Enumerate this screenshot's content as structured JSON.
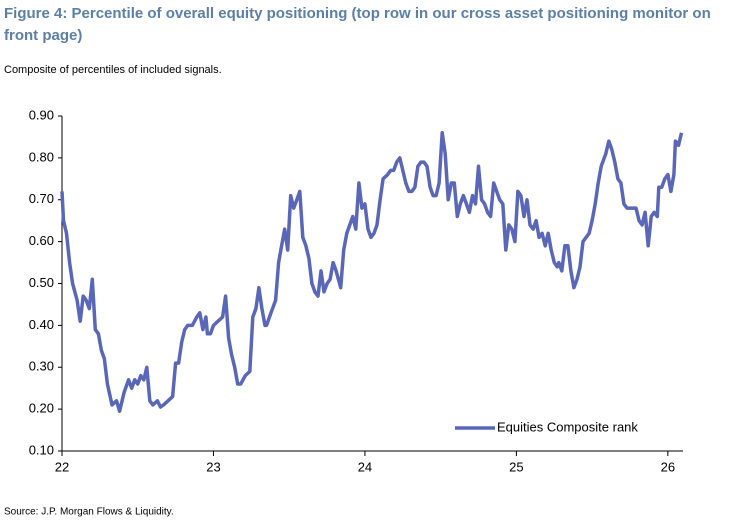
{
  "chart_data": {
    "type": "line",
    "title": [
      "Figure 4: Percentile of overall equity positioning (top row in our cross asset positioning monitor on",
      "front page)"
    ],
    "subtitle": "Composite of percentiles of included signals.",
    "source": "Source: J.P. Morgan Flows & Liquidity.",
    "legend": "lower right",
    "grid": false,
    "xlim": [
      22,
      26.1
    ],
    "xticks": [
      22,
      23,
      24,
      25,
      26
    ],
    "ylim": [
      0.1,
      0.9
    ],
    "yticks": [
      {
        "value": 0.1,
        "label": "0.10"
      },
      {
        "value": 0.2,
        "label": "0.20"
      },
      {
        "value": 0.3,
        "label": "0.30"
      },
      {
        "value": 0.4,
        "label": "0.40"
      },
      {
        "value": 0.5,
        "label": "0.50"
      },
      {
        "value": 0.6,
        "label": "0.60"
      },
      {
        "value": 0.7,
        "label": "0.70"
      },
      {
        "value": 0.8,
        "label": "0.80"
      },
      {
        "value": 0.9,
        "label": "0.90"
      }
    ],
    "x": [
      22.0,
      22.01,
      22.03,
      22.05,
      22.07,
      22.1,
      22.12,
      22.14,
      22.16,
      22.18,
      22.2,
      22.22,
      22.24,
      22.26,
      22.28,
      22.3,
      22.33,
      22.36,
      22.38,
      22.41,
      22.44,
      22.46,
      22.48,
      22.5,
      22.52,
      22.54,
      22.56,
      22.58,
      22.6,
      22.63,
      22.65,
      22.67,
      22.7,
      22.73,
      22.75,
      22.77,
      22.79,
      22.81,
      22.83,
      22.86,
      22.89,
      22.91,
      22.93,
      22.95,
      22.96,
      22.98,
      23.0,
      23.03,
      23.06,
      23.08,
      23.1,
      23.12,
      23.14,
      23.16,
      23.18,
      23.21,
      23.24,
      23.26,
      23.28,
      23.3,
      23.32,
      23.34,
      23.35,
      23.38,
      23.41,
      23.43,
      23.45,
      23.47,
      23.49,
      23.51,
      23.53,
      23.55,
      23.57,
      23.59,
      23.61,
      23.63,
      23.65,
      23.67,
      23.69,
      23.71,
      23.73,
      23.75,
      23.77,
      23.79,
      23.81,
      23.84,
      23.86,
      23.88,
      23.9,
      23.92,
      23.94,
      23.96,
      23.98,
      24.0,
      24.02,
      24.04,
      24.06,
      24.08,
      24.1,
      24.12,
      24.15,
      24.17,
      24.19,
      24.21,
      24.23,
      24.25,
      24.27,
      24.29,
      24.31,
      24.33,
      24.35,
      24.37,
      24.39,
      24.41,
      24.43,
      24.45,
      24.47,
      24.49,
      24.51,
      24.53,
      24.55,
      24.57,
      24.59,
      24.61,
      24.63,
      24.65,
      24.67,
      24.69,
      24.71,
      24.73,
      24.75,
      24.77,
      24.79,
      24.81,
      24.83,
      24.85,
      24.87,
      24.89,
      24.91,
      24.93,
      24.95,
      24.97,
      24.99,
      25.01,
      25.03,
      25.05,
      25.07,
      25.09,
      25.11,
      25.13,
      25.15,
      25.17,
      25.19,
      25.21,
      25.23,
      25.25,
      25.27,
      25.28,
      25.3,
      25.32,
      25.34,
      25.36,
      25.38,
      25.4,
      25.42,
      25.44,
      25.46,
      25.48,
      25.5,
      25.52,
      25.54,
      25.56,
      25.59,
      25.61,
      25.63,
      25.65,
      25.67,
      25.69,
      25.71,
      25.73,
      25.75,
      25.77,
      25.79,
      25.81,
      25.83,
      25.85,
      25.87,
      25.89,
      25.91,
      25.93,
      25.94,
      25.96,
      25.98,
      26.0,
      26.02,
      26.04,
      26.05,
      26.07,
      26.09
    ],
    "series": [
      {
        "name": "Equities Composite rank",
        "color": "#5a67b8",
        "values": [
          0.72,
          0.65,
          0.62,
          0.55,
          0.5,
          0.46,
          0.41,
          0.47,
          0.46,
          0.44,
          0.51,
          0.39,
          0.38,
          0.34,
          0.32,
          0.26,
          0.21,
          0.22,
          0.195,
          0.24,
          0.27,
          0.25,
          0.27,
          0.26,
          0.28,
          0.27,
          0.3,
          0.22,
          0.21,
          0.22,
          0.205,
          0.21,
          0.22,
          0.23,
          0.31,
          0.31,
          0.36,
          0.39,
          0.4,
          0.4,
          0.42,
          0.43,
          0.39,
          0.42,
          0.38,
          0.38,
          0.4,
          0.41,
          0.42,
          0.47,
          0.37,
          0.33,
          0.3,
          0.26,
          0.26,
          0.28,
          0.29,
          0.42,
          0.44,
          0.49,
          0.44,
          0.4,
          0.4,
          0.43,
          0.46,
          0.55,
          0.59,
          0.63,
          0.58,
          0.71,
          0.68,
          0.7,
          0.72,
          0.61,
          0.59,
          0.56,
          0.5,
          0.48,
          0.47,
          0.53,
          0.48,
          0.5,
          0.51,
          0.55,
          0.53,
          0.49,
          0.58,
          0.62,
          0.64,
          0.66,
          0.63,
          0.74,
          0.68,
          0.69,
          0.63,
          0.61,
          0.62,
          0.64,
          0.7,
          0.75,
          0.76,
          0.77,
          0.77,
          0.79,
          0.8,
          0.77,
          0.74,
          0.72,
          0.72,
          0.73,
          0.78,
          0.79,
          0.79,
          0.78,
          0.73,
          0.71,
          0.71,
          0.74,
          0.86,
          0.81,
          0.7,
          0.74,
          0.74,
          0.66,
          0.69,
          0.71,
          0.69,
          0.67,
          0.71,
          0.69,
          0.78,
          0.7,
          0.69,
          0.67,
          0.66,
          0.74,
          0.72,
          0.7,
          0.69,
          0.58,
          0.64,
          0.63,
          0.6,
          0.72,
          0.71,
          0.66,
          0.7,
          0.64,
          0.63,
          0.65,
          0.61,
          0.62,
          0.59,
          0.62,
          0.58,
          0.55,
          0.54,
          0.55,
          0.53,
          0.59,
          0.59,
          0.53,
          0.49,
          0.51,
          0.54,
          0.6,
          0.61,
          0.62,
          0.65,
          0.69,
          0.74,
          0.78,
          0.81,
          0.84,
          0.82,
          0.79,
          0.75,
          0.74,
          0.69,
          0.68,
          0.68,
          0.68,
          0.68,
          0.65,
          0.64,
          0.67,
          0.59,
          0.66,
          0.67,
          0.66,
          0.73,
          0.73,
          0.75,
          0.76,
          0.72,
          0.76,
          0.84,
          0.83,
          0.86
        ]
      }
    ]
  }
}
